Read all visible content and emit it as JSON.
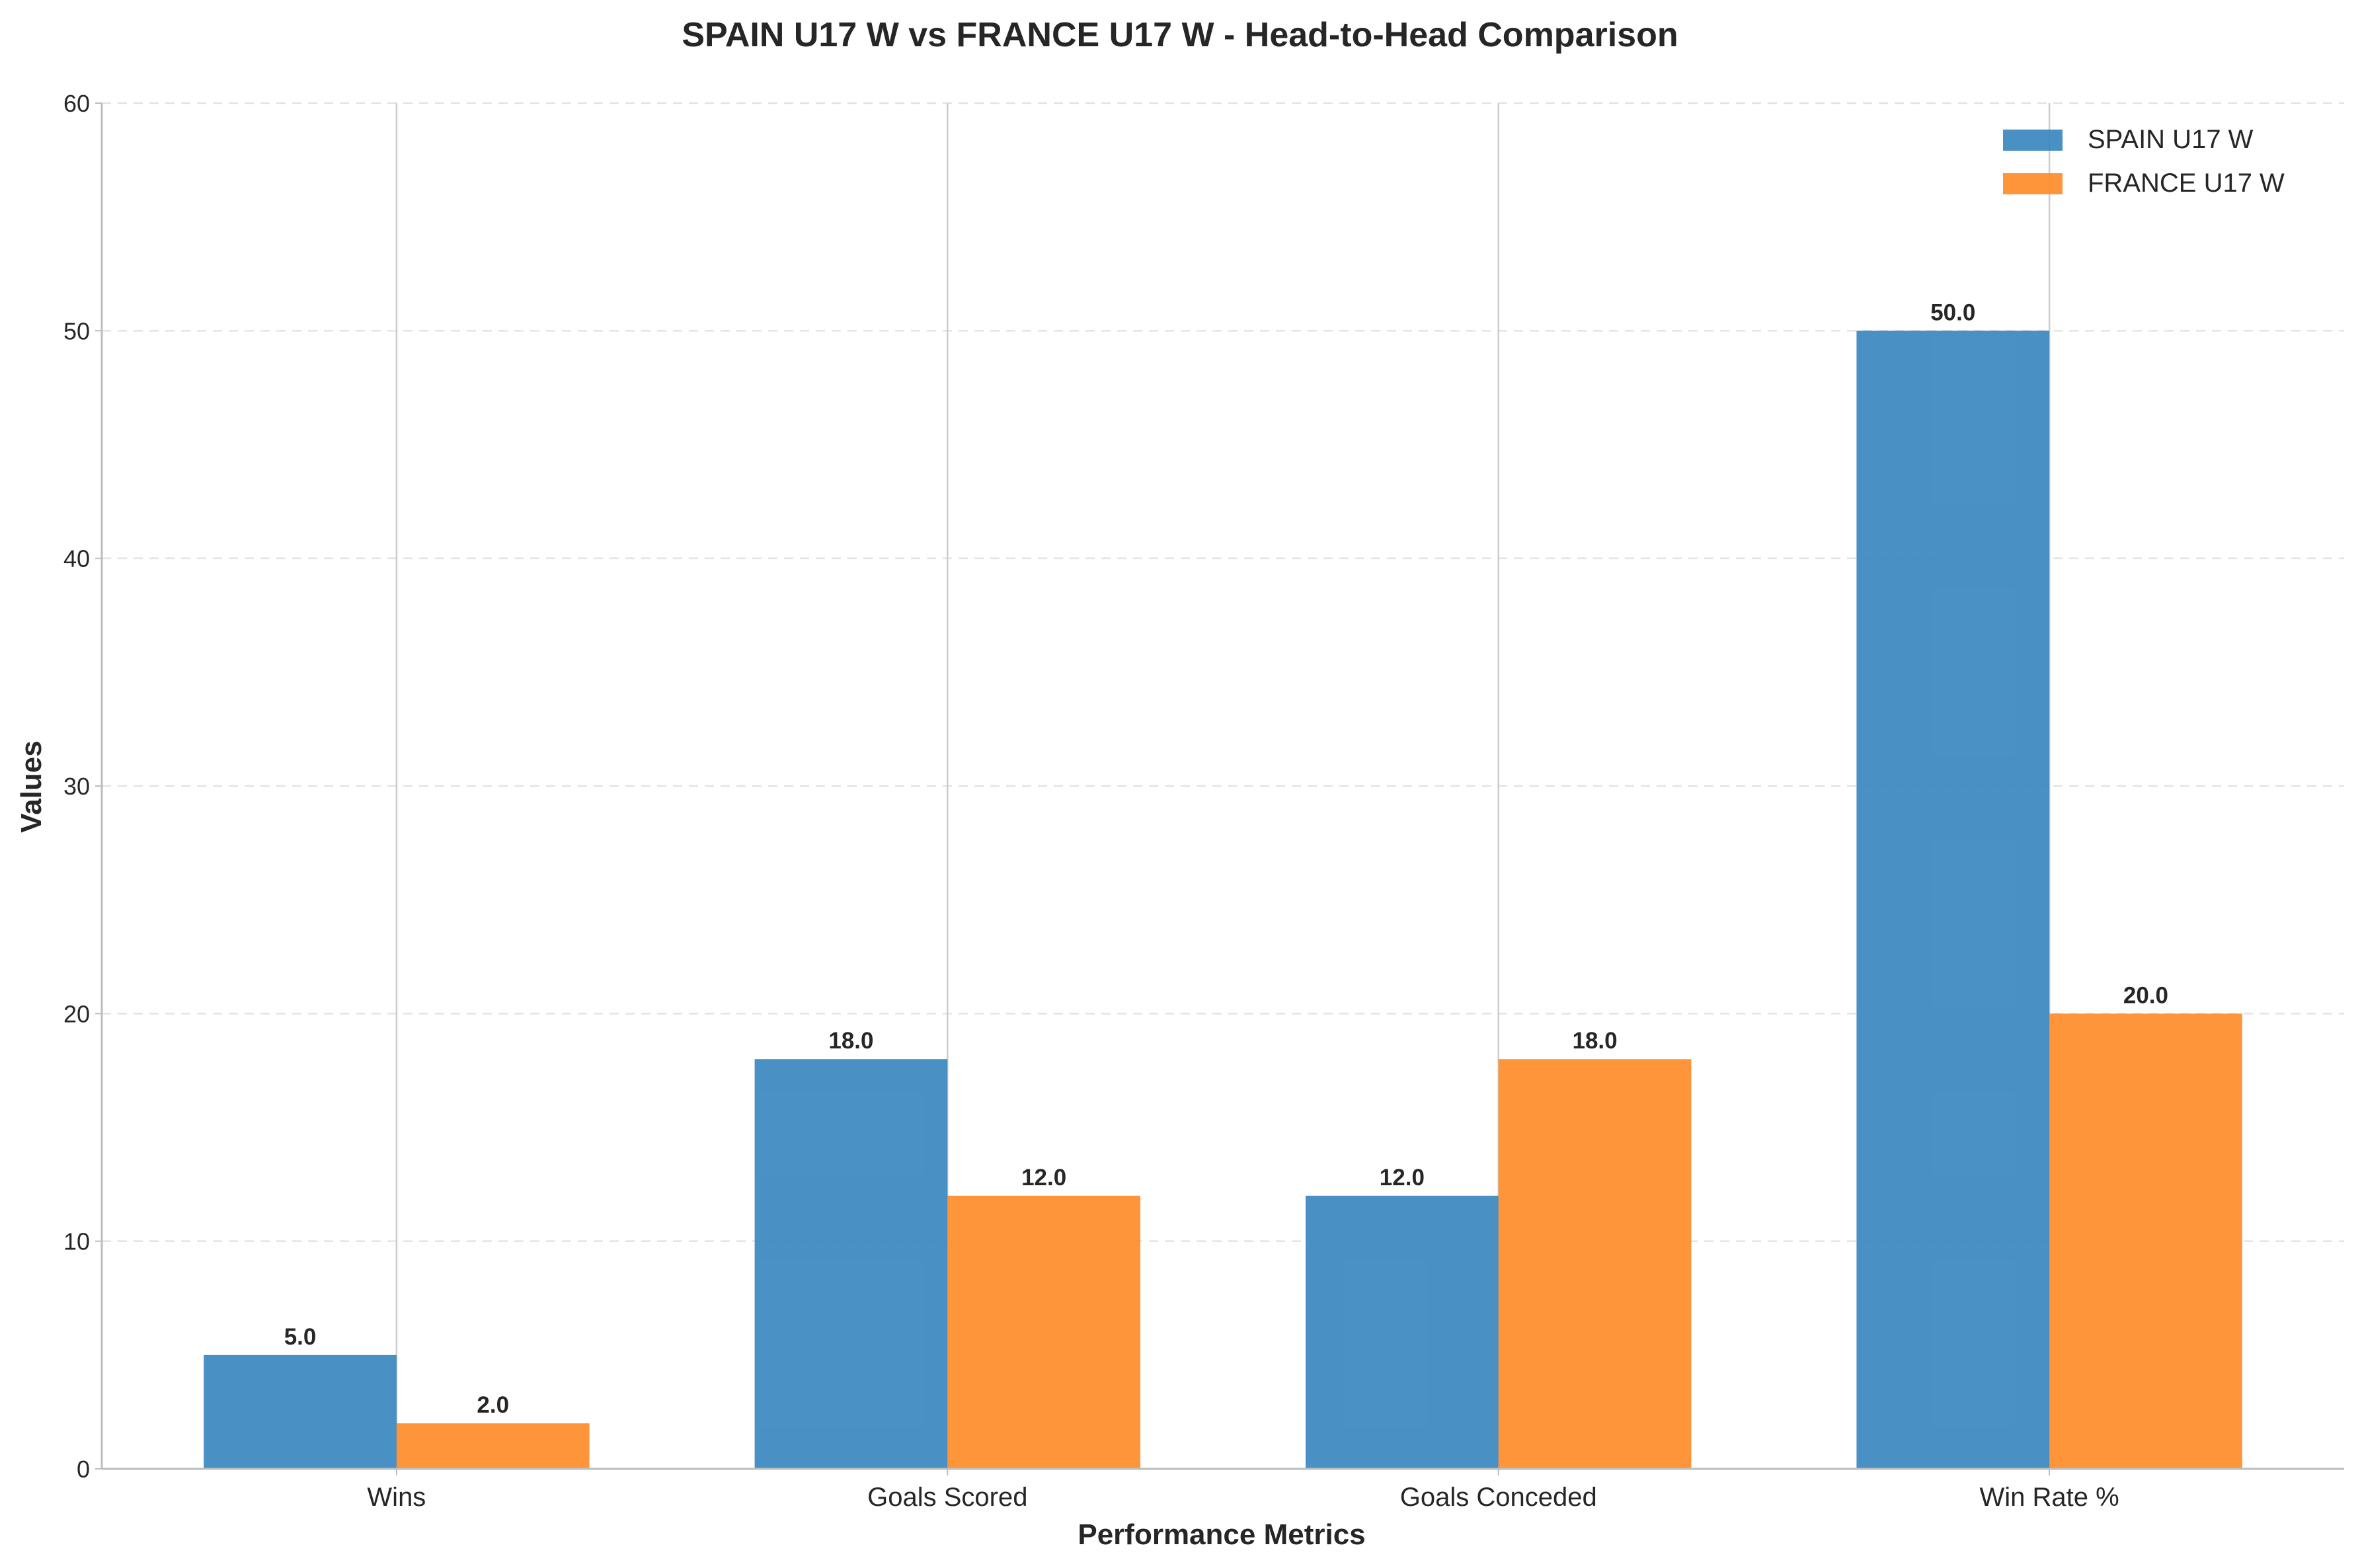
{
  "chart_data": {
    "type": "bar",
    "title": "SPAIN U17 W vs FRANCE U17 W - Head-to-Head Comparison",
    "xlabel": "Performance Metrics",
    "ylabel": "Values",
    "categories": [
      "Wins",
      "Goals Scored",
      "Goals Conceded",
      "Win Rate %"
    ],
    "series": [
      {
        "name": "SPAIN U17 W",
        "values": [
          5.0,
          18.0,
          12.0,
          50.0
        ],
        "color": "#3a87c0",
        "labels": [
          "5.0",
          "18.0",
          "12.0",
          "50.0"
        ]
      },
      {
        "name": "FRANCE U17 W",
        "values": [
          2.0,
          12.0,
          18.0,
          20.0
        ],
        "color": "#ff8c2a",
        "labels": [
          "2.0",
          "12.0",
          "18.0",
          "20.0"
        ]
      }
    ],
    "ylim": [
      0,
      60
    ],
    "yticks": [
      0,
      10,
      20,
      30,
      40,
      50,
      60
    ],
    "ytick_labels": [
      "0",
      "10",
      "20",
      "30",
      "40",
      "50",
      "60"
    ],
    "grid": true,
    "legend_position": "top-right"
  }
}
